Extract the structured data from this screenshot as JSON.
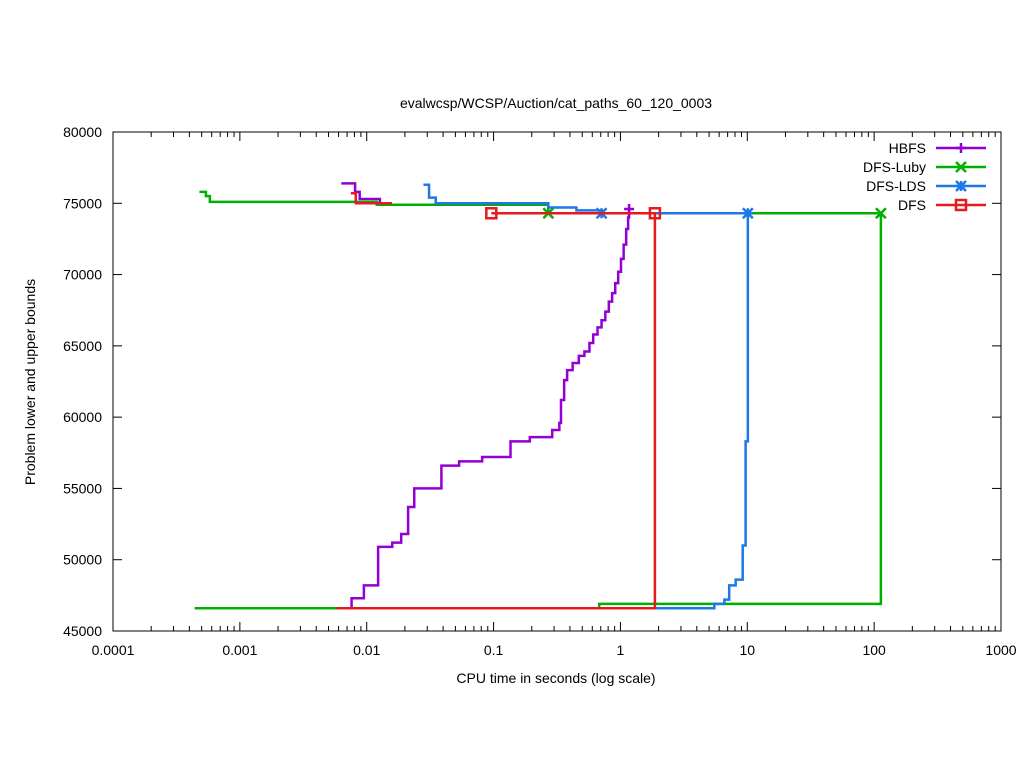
{
  "chart_data": {
    "type": "line",
    "title": "evalwcsp/WCSP/Auction/cat_paths_60_120_0003",
    "xlabel": "CPU time in seconds (log scale)",
    "ylabel": "Problem lower and upper bounds",
    "xscale": "log",
    "xlim": [
      0.0001,
      1000
    ],
    "ylim": [
      45000,
      80000
    ],
    "x_ticks": [
      0.0001,
      0.001,
      0.01,
      0.1,
      1,
      10,
      100,
      1000
    ],
    "x_tick_labels": [
      "0.0001",
      "0.001",
      "0.01",
      "0.1",
      "1",
      "10",
      "100",
      "1000"
    ],
    "y_ticks": [
      45000,
      50000,
      55000,
      60000,
      65000,
      70000,
      75000,
      80000
    ],
    "y_tick_labels": [
      "45000",
      "50000",
      "55000",
      "60000",
      "65000",
      "70000",
      "75000",
      "80000"
    ],
    "legend_position": "top-right",
    "series": [
      {
        "name": "HBFS",
        "color": "#9400d3",
        "marker": "plus",
        "marker_points": [
          [
            1.17,
            74600
          ]
        ],
        "lines": [
          [
            [
              0.0063,
              76400
            ],
            [
              0.0081,
              76400
            ],
            [
              0.0081,
              75800
            ],
            [
              0.0088,
              75800
            ],
            [
              0.0088,
              75300
            ],
            [
              0.0127,
              75300
            ],
            [
              0.0127,
              75000
            ],
            [
              0.0156,
              75000
            ]
          ],
          [
            [
              0.0048,
              46600
            ],
            [
              0.0076,
              46600
            ],
            [
              0.0076,
              47300
            ],
            [
              0.0095,
              47300
            ],
            [
              0.0095,
              48200
            ],
            [
              0.0123,
              48200
            ],
            [
              0.0123,
              50900
            ],
            [
              0.0159,
              50900
            ],
            [
              0.0159,
              51200
            ],
            [
              0.0187,
              51200
            ],
            [
              0.0187,
              51800
            ],
            [
              0.0212,
              51800
            ],
            [
              0.0212,
              53700
            ],
            [
              0.0237,
              53700
            ],
            [
              0.0237,
              55000
            ],
            [
              0.0388,
              55000
            ],
            [
              0.0388,
              56600
            ],
            [
              0.0535,
              56600
            ],
            [
              0.0535,
              56900
            ],
            [
              0.0813,
              56900
            ],
            [
              0.0813,
              57200
            ],
            [
              0.136,
              57200
            ],
            [
              0.136,
              58300
            ],
            [
              0.193,
              58300
            ],
            [
              0.193,
              58600
            ],
            [
              0.29,
              58600
            ],
            [
              0.29,
              59100
            ],
            [
              0.33,
              59100
            ],
            [
              0.33,
              59600
            ],
            [
              0.34,
              59600
            ],
            [
              0.34,
              61200
            ],
            [
              0.36,
              61200
            ],
            [
              0.36,
              62600
            ],
            [
              0.38,
              62600
            ],
            [
              0.38,
              63300
            ],
            [
              0.42,
              63300
            ],
            [
              0.42,
              63800
            ],
            [
              0.47,
              63800
            ],
            [
              0.47,
              64300
            ],
            [
              0.52,
              64300
            ],
            [
              0.52,
              64600
            ],
            [
              0.57,
              64600
            ],
            [
              0.57,
              65200
            ],
            [
              0.61,
              65200
            ],
            [
              0.61,
              65800
            ],
            [
              0.66,
              65800
            ],
            [
              0.66,
              66300
            ],
            [
              0.71,
              66300
            ],
            [
              0.71,
              66800
            ],
            [
              0.76,
              66800
            ],
            [
              0.76,
              67400
            ],
            [
              0.81,
              67400
            ],
            [
              0.81,
              68100
            ],
            [
              0.86,
              68100
            ],
            [
              0.86,
              68700
            ],
            [
              0.91,
              68700
            ],
            [
              0.91,
              69400
            ],
            [
              0.96,
              69400
            ],
            [
              0.96,
              70200
            ],
            [
              1.01,
              70200
            ],
            [
              1.01,
              71100
            ],
            [
              1.06,
              71100
            ],
            [
              1.06,
              72100
            ],
            [
              1.11,
              72100
            ],
            [
              1.11,
              73200
            ],
            [
              1.15,
              73200
            ],
            [
              1.15,
              74000
            ],
            [
              1.17,
              74000
            ],
            [
              1.17,
              74600
            ]
          ]
        ]
      },
      {
        "name": "DFS-Luby",
        "color": "#00b000",
        "marker": "x",
        "marker_points": [
          [
            0.27,
            74300
          ],
          [
            113,
            74300
          ]
        ],
        "lines": [
          [
            [
              0.00048,
              75800
            ],
            [
              0.00054,
              75800
            ],
            [
              0.00054,
              75500
            ],
            [
              0.00058,
              75500
            ],
            [
              0.00058,
              75100
            ],
            [
              0.012,
              75100
            ],
            [
              0.012,
              74900
            ],
            [
              0.27,
              74900
            ],
            [
              0.27,
              74300
            ],
            [
              113,
              74300
            ]
          ],
          [
            [
              0.00044,
              46600
            ],
            [
              0.68,
              46600
            ],
            [
              0.68,
              46900
            ],
            [
              113,
              46900
            ],
            [
              113,
              74300
            ]
          ]
        ]
      },
      {
        "name": "DFS-LDS",
        "color": "#1e78e6",
        "marker": "star",
        "marker_points": [
          [
            0.71,
            74300
          ],
          [
            10.1,
            74300
          ]
        ],
        "lines": [
          [
            [
              0.028,
              76300
            ],
            [
              0.031,
              76300
            ],
            [
              0.031,
              75400
            ],
            [
              0.035,
              75400
            ],
            [
              0.035,
              75000
            ],
            [
              0.27,
              75000
            ],
            [
              0.27,
              74700
            ],
            [
              0.45,
              74700
            ],
            [
              0.45,
              74500
            ],
            [
              0.71,
              74500
            ],
            [
              0.71,
              74300
            ],
            [
              10.1,
              74300
            ]
          ],
          [
            [
              0.71,
              46600
            ],
            [
              5.5,
              46600
            ],
            [
              5.5,
              46900
            ],
            [
              6.6,
              46900
            ],
            [
              6.6,
              47200
            ],
            [
              7.2,
              47200
            ],
            [
              7.2,
              48200
            ],
            [
              8.1,
              48200
            ],
            [
              8.1,
              48600
            ],
            [
              9.2,
              48600
            ],
            [
              9.2,
              51000
            ],
            [
              9.7,
              51000
            ],
            [
              9.7,
              58300
            ],
            [
              10.1,
              58300
            ],
            [
              10.1,
              74300
            ]
          ]
        ]
      },
      {
        "name": "DFS",
        "color": "#e41a1c",
        "marker": "square",
        "marker_points": [
          [
            0.096,
            74300
          ],
          [
            1.87,
            74300
          ]
        ],
        "lines": [
          [
            [
              0.0075,
              75700
            ],
            [
              0.0082,
              75700
            ],
            [
              0.0082,
              75000
            ],
            [
              0.0158,
              75000
            ]
          ],
          [
            [
              0.096,
              74300
            ],
            [
              1.87,
              74300
            ],
            [
              1.87,
              46600
            ],
            [
              0.0058,
              46600
            ]
          ]
        ]
      }
    ]
  }
}
